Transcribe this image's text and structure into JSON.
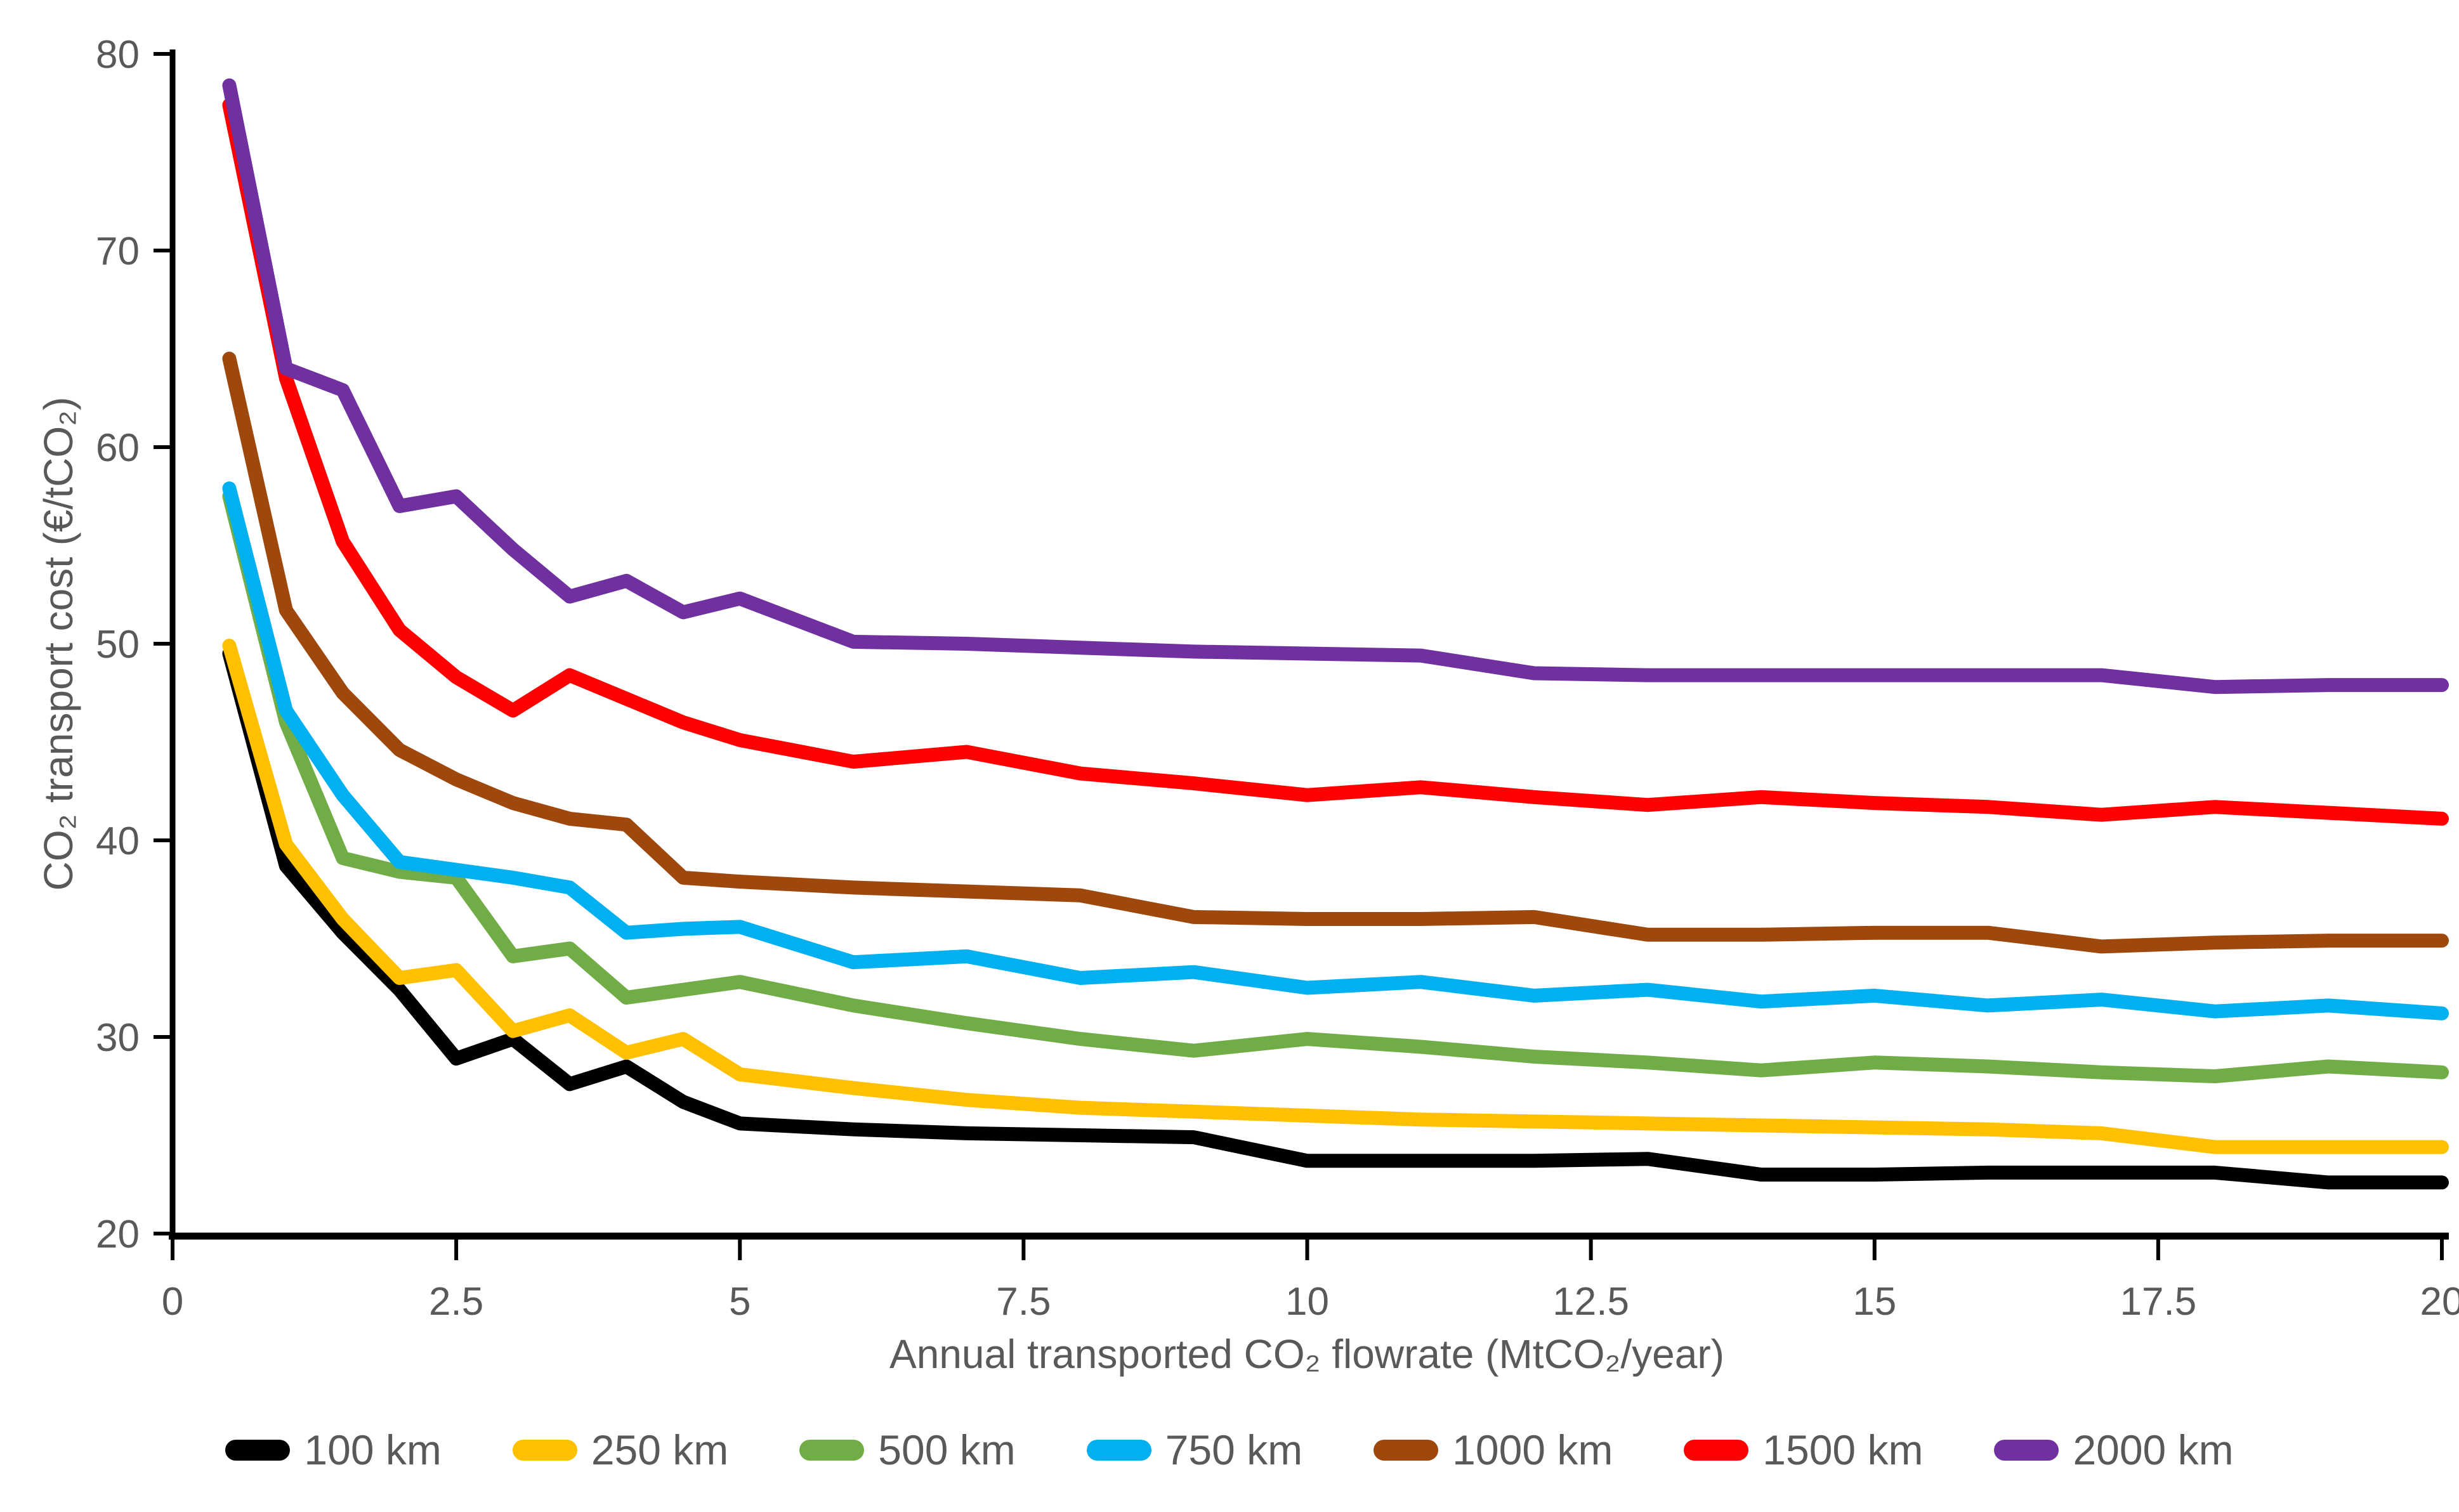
{
  "chart": {
    "title": "",
    "y_axis": {
      "title": "CO₂ transport cost (€/tCO₂)",
      "min": 20,
      "max": 80,
      "ticks": [
        20,
        30,
        40,
        50,
        60,
        70,
        80
      ]
    },
    "x_axis": {
      "title": "Annual transported CO₂ flowrate (MtCO₂/year)",
      "min": 0,
      "max": 20,
      "ticks": [
        0,
        2.5,
        5,
        7.5,
        10,
        12.5,
        15,
        17.5,
        20
      ]
    }
  },
  "colors": {
    "background": "#FFFFFF",
    "axis_line": "#000000",
    "axis_text": "#595959"
  },
  "chart_data": {
    "type": "line",
    "grid": false,
    "legend_position": "bottom",
    "xlim": [
      0,
      20
    ],
    "ylim": [
      20,
      80
    ],
    "x": [
      0.5,
      1,
      1.5,
      2,
      2.5,
      3,
      3.5,
      4,
      4.5,
      5,
      6,
      7,
      8,
      9,
      10,
      11,
      12,
      13,
      14,
      15,
      16,
      17,
      18,
      19,
      20
    ],
    "series": [
      {
        "name": "100 km",
        "color": "#000000",
        "values": [
          49.5,
          38.7,
          35.3,
          32.4,
          28.9,
          29.9,
          27.6,
          28.5,
          26.7,
          25.6,
          25.3,
          25.1,
          25.0,
          24.9,
          23.7,
          23.7,
          23.7,
          23.8,
          23.0,
          23.0,
          23.1,
          23.1,
          23.1,
          22.6,
          22.6
        ]
      },
      {
        "name": "250 km",
        "color": "#FFC000",
        "values": [
          49.9,
          39.8,
          36.0,
          33.0,
          33.4,
          30.3,
          31.1,
          29.2,
          29.9,
          28.1,
          27.4,
          26.8,
          26.4,
          26.2,
          26.0,
          25.8,
          25.7,
          25.6,
          25.5,
          25.4,
          25.3,
          25.1,
          24.4,
          24.4,
          24.4
        ]
      },
      {
        "name": "500 km",
        "color": "#70AD47",
        "values": [
          57.5,
          46.0,
          39.1,
          38.4,
          38.1,
          34.1,
          34.5,
          32.0,
          32.4,
          32.8,
          31.6,
          30.7,
          29.9,
          29.3,
          29.9,
          29.5,
          29.0,
          28.7,
          28.3,
          28.7,
          28.5,
          28.2,
          28.0,
          28.5,
          28.2
        ]
      },
      {
        "name": "750 km",
        "color": "#00B0F0",
        "values": [
          57.9,
          46.6,
          42.3,
          38.9,
          38.5,
          38.1,
          37.6,
          35.3,
          35.5,
          35.6,
          33.8,
          34.1,
          33.0,
          33.3,
          32.5,
          32.8,
          32.1,
          32.4,
          31.8,
          32.1,
          31.6,
          31.9,
          31.3,
          31.6,
          31.2
        ]
      },
      {
        "name": "1000 km",
        "color": "#9E480E",
        "values": [
          64.5,
          51.7,
          47.5,
          44.6,
          43.1,
          41.9,
          41.1,
          40.8,
          38.1,
          37.9,
          37.6,
          37.4,
          37.2,
          36.1,
          36.0,
          36.0,
          36.1,
          35.2,
          35.2,
          35.3,
          35.3,
          34.6,
          34.8,
          34.9,
          34.9
        ]
      },
      {
        "name": "1500 km",
        "color": "#FF0000",
        "values": [
          77.4,
          63.5,
          55.2,
          50.7,
          48.3,
          46.6,
          48.4,
          47.2,
          46.0,
          45.1,
          44.0,
          44.5,
          43.4,
          42.9,
          42.3,
          42.7,
          42.2,
          41.8,
          42.2,
          41.9,
          41.7,
          41.3,
          41.7,
          41.4,
          41.1
        ]
      },
      {
        "name": "2000 km",
        "color": "#7030A0",
        "values": [
          78.4,
          64.0,
          62.9,
          57.0,
          57.5,
          54.8,
          52.4,
          53.2,
          51.6,
          52.3,
          50.1,
          50.0,
          49.8,
          49.6,
          49.5,
          49.4,
          48.5,
          48.4,
          48.4,
          48.4,
          48.4,
          48.4,
          47.8,
          47.9,
          47.9
        ]
      }
    ]
  }
}
